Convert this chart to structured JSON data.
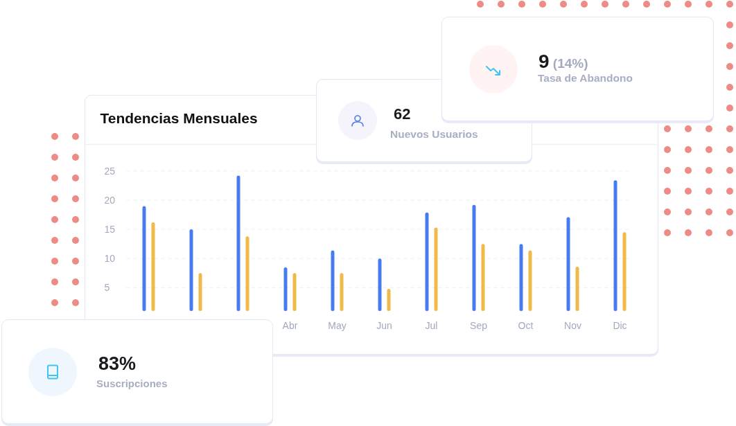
{
  "chart_data": [
    {
      "type": "other",
      "title": "9",
      "annotations": [
        "(14%)"
      ],
      "subtitle": "Tasa de Abandono"
    },
    {
      "type": "other",
      "title": "62",
      "subtitle": "Nuevos Usuarios"
    },
    {
      "type": "bar",
      "title": "Tendencias Mensuales",
      "categories": [
        null,
        null,
        null,
        "Abr",
        "May",
        "Jun",
        "Jul",
        "Sep",
        "Oct",
        "Nov",
        "Dic"
      ],
      "series": [
        {
          "color": "#467cf0",
          "values": [
            19,
            15,
            24.2,
            8.5,
            11.4,
            10,
            17.9,
            19.2,
            12.5,
            17.1,
            23.4
          ]
        },
        {
          "color": "#f0ba48",
          "values": [
            16.2,
            7.5,
            13.8,
            7.5,
            7.5,
            4.8,
            15.3,
            12.5,
            11.4,
            8.6,
            14.5
          ]
        }
      ],
      "ylim": [
        1,
        25
      ],
      "yticks": [
        5,
        10,
        15,
        20,
        25
      ],
      "grid": "y"
    },
    {
      "type": "other",
      "title": "83%",
      "subtitle": "Suscripciones"
    }
  ]
}
